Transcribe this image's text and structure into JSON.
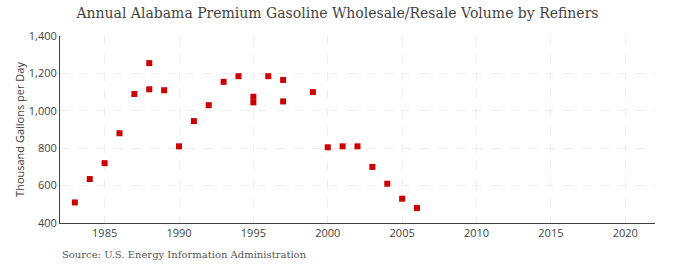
{
  "chart_data": {
    "type": "scatter",
    "title": "Annual Alabama Premium Gasoline Wholesale/Resale Volume by Refiners",
    "ylabel": "Thousand Gallons per Day",
    "source": "Source: U.S. Energy Information Administration",
    "color": "#cc0000",
    "marker": "square",
    "grid": true,
    "xlim": [
      1982,
      2022
    ],
    "ylim": [
      400,
      1400
    ],
    "xticks": [
      1985,
      1990,
      1995,
      2000,
      2005,
      2010,
      2015,
      2020
    ],
    "yticks": [
      400,
      600,
      800,
      {
        "value": 1000,
        "label": "1,000"
      },
      {
        "value": 1200,
        "label": "1,200"
      },
      {
        "value": 1400,
        "label": "1,400"
      }
    ],
    "x": [
      1983,
      1984,
      1985,
      1986,
      1987,
      1988,
      1988,
      1989,
      1990,
      1991,
      1992,
      1993,
      1994,
      1995,
      1995,
      1996,
      1997,
      1997,
      1999,
      2000,
      2001,
      2002,
      2003,
      2004,
      2005,
      2006
    ],
    "values": [
      510,
      635,
      720,
      880,
      1090,
      1255,
      1115,
      1110,
      810,
      945,
      1030,
      1155,
      1185,
      1075,
      1045,
      1185,
      1165,
      1050,
      1100,
      805,
      810,
      810,
      700,
      610,
      530,
      480
    ]
  }
}
